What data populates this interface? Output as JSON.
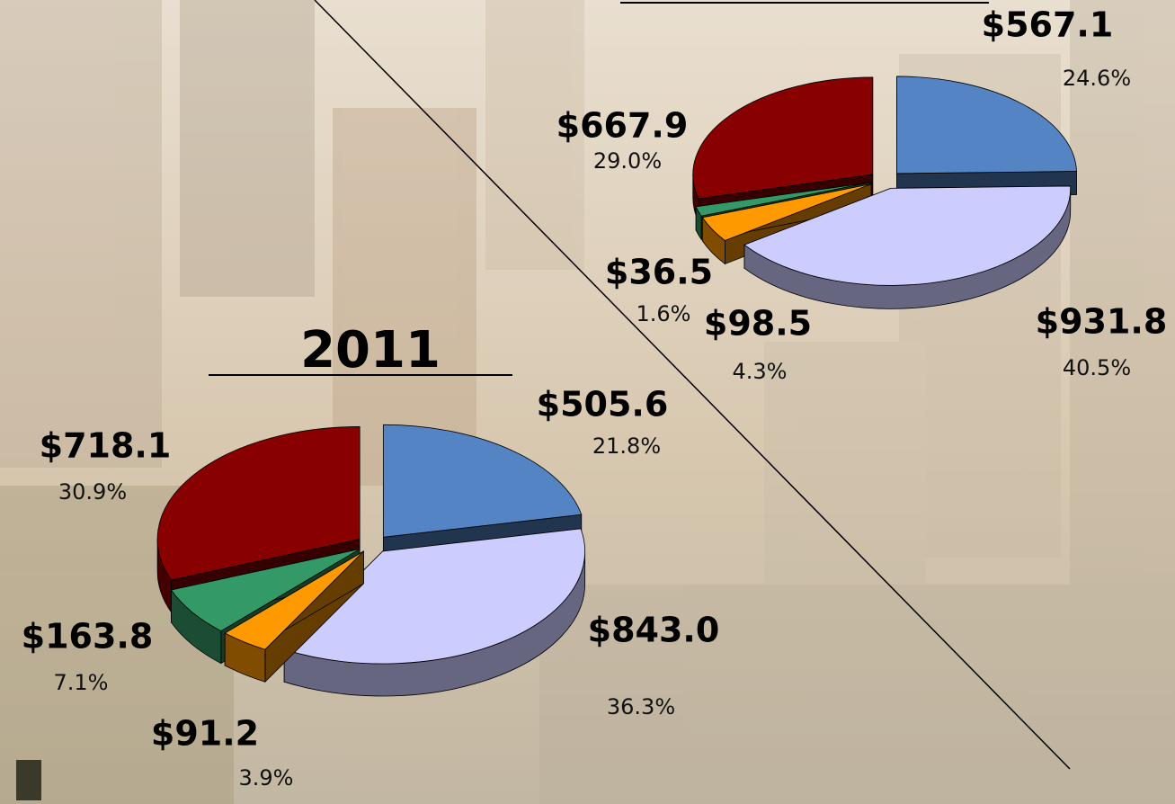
{
  "chart_data": [
    {
      "type": "pie",
      "values": [
        567.1,
        931.8,
        98.5,
        36.5,
        667.9
      ],
      "value_labels": [
        "$567.1",
        "$931.8",
        "$98.5",
        "$36.5",
        "$667.9"
      ],
      "percent_values": [
        24.6,
        40.5,
        4.3,
        1.6,
        29.0
      ],
      "percent_labels": [
        "24.6%",
        "40.5%",
        "4.3%",
        "1.6%",
        "29.0%"
      ],
      "colors": [
        "#5484c4",
        "#ccccff",
        "#ff9900",
        "#339966",
        "#880000"
      ]
    },
    {
      "type": "pie",
      "title": "2011",
      "values": [
        505.6,
        843.0,
        91.2,
        163.8,
        718.1
      ],
      "value_labels": [
        "$505.6",
        "$843.0",
        "$91.2",
        "$163.8",
        "$718.1"
      ],
      "percent_values": [
        21.8,
        36.3,
        3.9,
        7.1,
        30.9
      ],
      "percent_labels": [
        "21.8%",
        "36.3%",
        "3.9%",
        "7.1%",
        "30.9%"
      ],
      "colors": [
        "#5484c4",
        "#ccccff",
        "#ff9900",
        "#339966",
        "#880000"
      ]
    }
  ]
}
